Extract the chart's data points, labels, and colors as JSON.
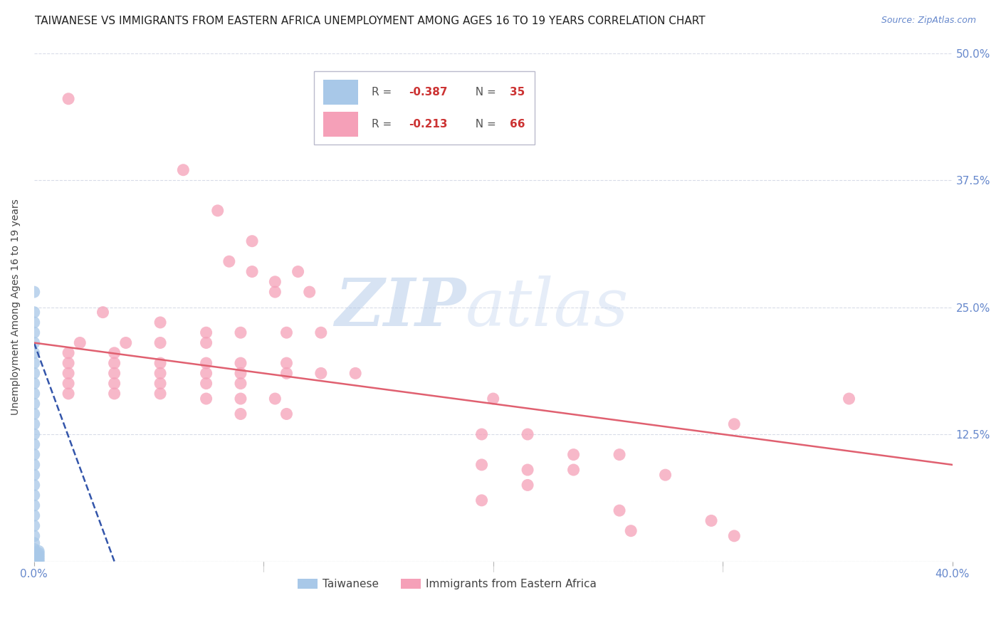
{
  "title": "TAIWANESE VS IMMIGRANTS FROM EASTERN AFRICA UNEMPLOYMENT AMONG AGES 16 TO 19 YEARS CORRELATION CHART",
  "source": "Source: ZipAtlas.com",
  "ylabel": "Unemployment Among Ages 16 to 19 years",
  "xlim": [
    0.0,
    0.4
  ],
  "ylim": [
    0.0,
    0.5
  ],
  "yticks": [
    0.0,
    0.125,
    0.25,
    0.375,
    0.5
  ],
  "ytick_labels": [
    "",
    "12.5%",
    "25.0%",
    "37.5%",
    "50.0%"
  ],
  "xticks": [
    0.0,
    0.1,
    0.2,
    0.3,
    0.4
  ],
  "xtick_labels": [
    "0.0%",
    "",
    "",
    "",
    "40.0%"
  ],
  "watermark_zip": "ZIP",
  "watermark_atlas": "atlas",
  "legend_r1_val": "-0.387",
  "legend_n1_val": "35",
  "legend_r2_val": "-0.213",
  "legend_n2_val": "66",
  "taiwanese_color": "#a8c8e8",
  "eastern_africa_color": "#f5a0b8",
  "trend_taiwanese_color": "#3355aa",
  "trend_eastern_color": "#e06070",
  "taiwanese_scatter": [
    [
      0.0,
      0.265
    ],
    [
      0.0,
      0.245
    ],
    [
      0.0,
      0.235
    ],
    [
      0.0,
      0.225
    ],
    [
      0.0,
      0.215
    ],
    [
      0.0,
      0.205
    ],
    [
      0.0,
      0.195
    ],
    [
      0.0,
      0.185
    ],
    [
      0.0,
      0.175
    ],
    [
      0.0,
      0.165
    ],
    [
      0.0,
      0.155
    ],
    [
      0.0,
      0.145
    ],
    [
      0.0,
      0.135
    ],
    [
      0.0,
      0.125
    ],
    [
      0.0,
      0.115
    ],
    [
      0.0,
      0.105
    ],
    [
      0.0,
      0.095
    ],
    [
      0.0,
      0.085
    ],
    [
      0.0,
      0.075
    ],
    [
      0.0,
      0.065
    ],
    [
      0.0,
      0.055
    ],
    [
      0.0,
      0.045
    ],
    [
      0.0,
      0.035
    ],
    [
      0.0,
      0.025
    ],
    [
      0.0,
      0.018
    ],
    [
      0.0,
      0.012
    ],
    [
      0.0,
      0.006
    ],
    [
      0.0,
      0.0
    ],
    [
      0.0,
      0.001
    ],
    [
      0.002,
      0.0
    ],
    [
      0.002,
      0.002
    ],
    [
      0.002,
      0.004
    ],
    [
      0.002,
      0.006
    ],
    [
      0.002,
      0.008
    ],
    [
      0.002,
      0.01
    ]
  ],
  "eastern_africa_scatter": [
    [
      0.015,
      0.455
    ],
    [
      0.065,
      0.385
    ],
    [
      0.08,
      0.345
    ],
    [
      0.095,
      0.315
    ],
    [
      0.085,
      0.295
    ],
    [
      0.095,
      0.285
    ],
    [
      0.115,
      0.285
    ],
    [
      0.105,
      0.275
    ],
    [
      0.105,
      0.265
    ],
    [
      0.12,
      0.265
    ],
    [
      0.03,
      0.245
    ],
    [
      0.055,
      0.235
    ],
    [
      0.075,
      0.225
    ],
    [
      0.09,
      0.225
    ],
    [
      0.11,
      0.225
    ],
    [
      0.125,
      0.225
    ],
    [
      0.02,
      0.215
    ],
    [
      0.04,
      0.215
    ],
    [
      0.055,
      0.215
    ],
    [
      0.075,
      0.215
    ],
    [
      0.015,
      0.205
    ],
    [
      0.035,
      0.205
    ],
    [
      0.015,
      0.195
    ],
    [
      0.035,
      0.195
    ],
    [
      0.055,
      0.195
    ],
    [
      0.075,
      0.195
    ],
    [
      0.09,
      0.195
    ],
    [
      0.11,
      0.195
    ],
    [
      0.015,
      0.185
    ],
    [
      0.035,
      0.185
    ],
    [
      0.055,
      0.185
    ],
    [
      0.075,
      0.185
    ],
    [
      0.09,
      0.185
    ],
    [
      0.11,
      0.185
    ],
    [
      0.125,
      0.185
    ],
    [
      0.14,
      0.185
    ],
    [
      0.015,
      0.175
    ],
    [
      0.035,
      0.175
    ],
    [
      0.055,
      0.175
    ],
    [
      0.075,
      0.175
    ],
    [
      0.09,
      0.175
    ],
    [
      0.015,
      0.165
    ],
    [
      0.035,
      0.165
    ],
    [
      0.055,
      0.165
    ],
    [
      0.075,
      0.16
    ],
    [
      0.09,
      0.16
    ],
    [
      0.105,
      0.16
    ],
    [
      0.2,
      0.16
    ],
    [
      0.09,
      0.145
    ],
    [
      0.11,
      0.145
    ],
    [
      0.195,
      0.125
    ],
    [
      0.215,
      0.125
    ],
    [
      0.235,
      0.105
    ],
    [
      0.255,
      0.105
    ],
    [
      0.305,
      0.135
    ],
    [
      0.195,
      0.095
    ],
    [
      0.215,
      0.09
    ],
    [
      0.235,
      0.09
    ],
    [
      0.275,
      0.085
    ],
    [
      0.215,
      0.075
    ],
    [
      0.355,
      0.16
    ],
    [
      0.195,
      0.06
    ],
    [
      0.255,
      0.05
    ],
    [
      0.295,
      0.04
    ],
    [
      0.26,
      0.03
    ],
    [
      0.305,
      0.025
    ]
  ],
  "taiwanese_trend_x": [
    0.0,
    0.035
  ],
  "taiwanese_trend_y": [
    0.215,
    0.0
  ],
  "eastern_trend_x": [
    0.0,
    0.4
  ],
  "eastern_trend_y": [
    0.215,
    0.095
  ],
  "background_color": "#ffffff",
  "grid_color": "#d8dce8",
  "tick_color": "#6688cc",
  "title_fontsize": 11,
  "label_fontsize": 10,
  "tick_fontsize": 11
}
